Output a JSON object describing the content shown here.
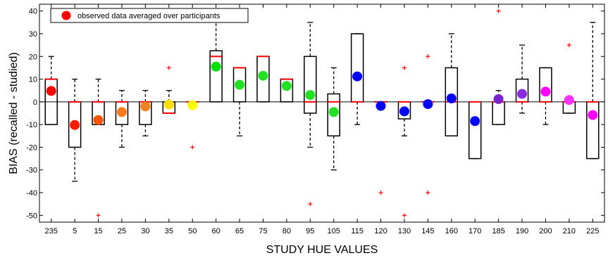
{
  "chart_data": {
    "type": "boxplot",
    "title": "",
    "xlabel": "STUDY HUE VALUES",
    "ylabel": "BIAS (recalled - studied)",
    "ylim": [
      -53,
      43
    ],
    "yticks": [
      -50,
      -40,
      -30,
      -20,
      -10,
      0,
      10,
      20,
      30,
      40
    ],
    "legend": {
      "placement": "top-left",
      "label": "observed data averaged over participants",
      "marker_color": "#ff0000"
    },
    "colors": {
      "box": "#000000",
      "median": "#ff0000",
      "outlier": "#ff0000",
      "zero_line": "#000000"
    },
    "categories": [
      "235",
      "5",
      "15",
      "25",
      "30",
      "35",
      "50",
      "60",
      "65",
      "75",
      "80",
      "95",
      "105",
      "115",
      "120",
      "130",
      "145",
      "160",
      "170",
      "185",
      "190",
      "200",
      "210",
      "225"
    ],
    "boxes": [
      {
        "q1": -10,
        "median": 10,
        "q3": 10,
        "whisker_low": -10,
        "whisker_high": 20,
        "mean": 4.8,
        "mean_color": "#ff0000",
        "outliers": []
      },
      {
        "q1": -20,
        "median": 0,
        "q3": 0,
        "whisker_low": -35,
        "whisker_high": 10,
        "mean": -10.2,
        "mean_color": "#ff1a00",
        "outliers": []
      },
      {
        "q1": -10,
        "median": 0,
        "q3": 0,
        "whisker_low": -10,
        "whisker_high": 10,
        "mean": -8,
        "mean_color": "#ff5500",
        "outliers": [
          -50
        ]
      },
      {
        "q1": -10,
        "median": 0,
        "q3": 0,
        "whisker_low": -20,
        "whisker_high": 5,
        "mean": -4.5,
        "mean_color": "#ff7a1a",
        "outliers": []
      },
      {
        "q1": -10,
        "median": 0,
        "q3": 0,
        "whisker_low": -15,
        "whisker_high": 5,
        "mean": -2,
        "mean_color": "#f08020",
        "outliers": []
      },
      {
        "q1": -5,
        "median": -5,
        "q3": 0,
        "whisker_low": -5,
        "whisker_high": 5,
        "mean": -1.2,
        "mean_color": "#ffdd00",
        "outliers": [
          15
        ]
      },
      {
        "q1": 0,
        "median": 0,
        "q3": 0,
        "whisker_low": 0,
        "whisker_high": 0,
        "mean": -1.5,
        "mean_color": "#ffff00",
        "outliers": [
          -20
        ]
      },
      {
        "q1": 0,
        "median": 20,
        "q3": 22.5,
        "whisker_low": 0,
        "whisker_high": 35,
        "mean": 15.5,
        "mean_color": "#00e000",
        "outliers": []
      },
      {
        "q1": 0,
        "median": 15,
        "q3": 15,
        "whisker_low": -15,
        "whisker_high": 15,
        "mean": 7.5,
        "mean_color": "#22e022",
        "outliers": []
      },
      {
        "q1": 0,
        "median": 20,
        "q3": 20,
        "whisker_low": 0,
        "whisker_high": 20,
        "mean": 11.5,
        "mean_color": "#22e022",
        "outliers": []
      },
      {
        "q1": 0,
        "median": 10,
        "q3": 10,
        "whisker_low": 0,
        "whisker_high": 10,
        "mean": 7,
        "mean_color": "#22e022",
        "outliers": []
      },
      {
        "q1": -5,
        "median": 0,
        "q3": 20,
        "whisker_low": -20,
        "whisker_high": 35,
        "mean": 3,
        "mean_color": "#22e022",
        "outliers": [
          -45
        ]
      },
      {
        "q1": -15,
        "median": 0,
        "q3": 3.5,
        "whisker_low": -30,
        "whisker_high": 15,
        "mean": -4.5,
        "mean_color": "#22e022",
        "outliers": []
      },
      {
        "q1": 0,
        "median": 0,
        "q3": 30,
        "whisker_low": -10,
        "whisker_high": 30,
        "mean": 11.2,
        "mean_color": "#0000ff",
        "outliers": []
      },
      {
        "q1": 0,
        "median": 0,
        "q3": 0,
        "whisker_low": 0,
        "whisker_high": 0,
        "mean": -1.8,
        "mean_color": "#0000ff",
        "outliers": [
          -40
        ]
      },
      {
        "q1": -7.5,
        "median": 0,
        "q3": 0,
        "whisker_low": -15,
        "whisker_high": 0,
        "mean": -4.2,
        "mean_color": "#0000ff",
        "outliers": [
          15,
          -50
        ]
      },
      {
        "q1": 0,
        "median": 0,
        "q3": 0,
        "whisker_low": 0,
        "whisker_high": 0,
        "mean": -1,
        "mean_color": "#0000ff",
        "outliers": [
          20,
          -40
        ]
      },
      {
        "q1": -15,
        "median": 0,
        "q3": 15,
        "whisker_low": -15,
        "whisker_high": 30,
        "mean": 1.5,
        "mean_color": "#0000ff",
        "outliers": []
      },
      {
        "q1": -25,
        "median": 0,
        "q3": 0,
        "whisker_low": -25,
        "whisker_high": 0,
        "mean": -8.5,
        "mean_color": "#0000ff",
        "outliers": []
      },
      {
        "q1": -10,
        "median": 0,
        "q3": 0,
        "whisker_low": -10,
        "whisker_high": 5,
        "mean": 1.2,
        "mean_color": "#7a20d0",
        "outliers": [
          40
        ]
      },
      {
        "q1": 0,
        "median": 0,
        "q3": 10,
        "whisker_low": -5,
        "whisker_high": 25,
        "mean": 3.5,
        "mean_color": "#8a2be2",
        "outliers": []
      },
      {
        "q1": 0,
        "median": 0,
        "q3": 15,
        "whisker_low": -10,
        "whisker_high": 15,
        "mean": 4.5,
        "mean_color": "#ff00ff",
        "outliers": []
      },
      {
        "q1": -5,
        "median": 0,
        "q3": 0,
        "whisker_low": -5,
        "whisker_high": 0,
        "mean": 0.8,
        "mean_color": "#ff33ff",
        "outliers": [
          25
        ]
      },
      {
        "q1": -25,
        "median": 0,
        "q3": 0,
        "whisker_low": -25,
        "whisker_high": 35,
        "mean": -5.8,
        "mean_color": "#ff00ff",
        "outliers": []
      }
    ]
  }
}
